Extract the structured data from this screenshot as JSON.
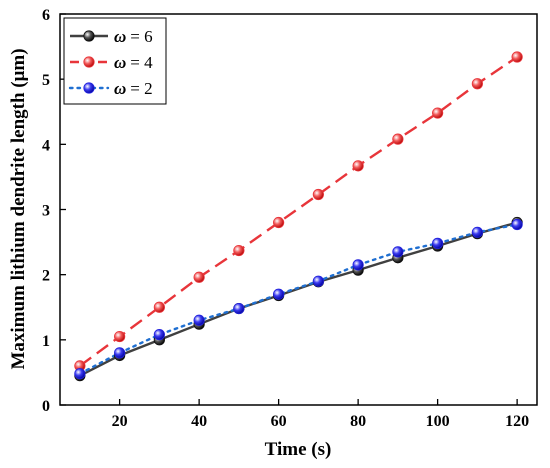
{
  "chart_data": {
    "type": "line",
    "title": "",
    "xlabel": "Time (s)",
    "ylabel": "Maximum lithium dendrite length (μm)",
    "xlim": [
      5,
      125
    ],
    "ylim": [
      0,
      6
    ],
    "xticks": [
      20,
      40,
      60,
      80,
      100,
      120
    ],
    "yticks": [
      0,
      1,
      2,
      3,
      4,
      5,
      6
    ],
    "grid": false,
    "legend_position": "top-left",
    "x": [
      10,
      20,
      30,
      40,
      50,
      60,
      70,
      80,
      90,
      100,
      110,
      120
    ],
    "series": [
      {
        "name": "ω = 6",
        "legend_symbol": "ω",
        "legend_value": "= 6",
        "color": "#404040",
        "marker_color": "#111111",
        "line_style": "solid",
        "values": [
          0.45,
          0.76,
          1.0,
          1.24,
          1.48,
          1.68,
          1.89,
          2.07,
          2.26,
          2.44,
          2.63,
          2.8
        ]
      },
      {
        "name": "ω = 4",
        "legend_symbol": "ω",
        "legend_value": "= 4",
        "color": "#e8353a",
        "marker_color": "#e8353a",
        "line_style": "dashed",
        "values": [
          0.6,
          1.05,
          1.5,
          1.96,
          2.37,
          2.8,
          3.23,
          3.67,
          4.08,
          4.48,
          4.93,
          5.34
        ]
      },
      {
        "name": "ω = 2",
        "legend_symbol": "ω",
        "legend_value": "= 2",
        "color": "#1f6fd1",
        "marker_color": "#2222dd",
        "line_style": "dotted",
        "values": [
          0.48,
          0.8,
          1.08,
          1.3,
          1.48,
          1.7,
          1.9,
          2.15,
          2.35,
          2.48,
          2.65,
          2.77
        ]
      }
    ]
  }
}
